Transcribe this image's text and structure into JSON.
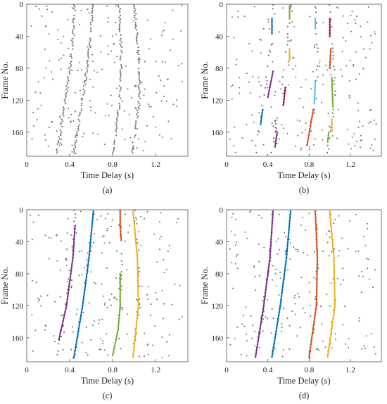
{
  "colors": {
    "noise": "#707070",
    "frame": "#555555",
    "purple": "#7E2F8E",
    "blue": "#0072BD",
    "orange": "#D95319",
    "green": "#77AC30",
    "yellow": "#EDB120",
    "cyan": "#4DBEEE",
    "darkred": "#A2142F"
  },
  "chart_data": [
    {
      "type": "scatter",
      "caption": "(a)",
      "xlabel": "Time Delay (s)",
      "ylabel": "Frame No.",
      "xlim": [
        0,
        1.5
      ],
      "ylim": [
        0,
        190
      ],
      "y_inverted": true,
      "xticks": [
        "0",
        "0.4",
        "0.8",
        "1.2"
      ],
      "yticks": [
        "0",
        "40",
        "80",
        "120",
        "160"
      ],
      "series": [],
      "tracks": []
    },
    {
      "type": "scatter",
      "caption": "(b)",
      "xlabel": "Time Delay (s)",
      "ylabel": "Frame No.",
      "xlim": [
        0,
        1.5
      ],
      "ylim": [
        0,
        190
      ],
      "y_inverted": true,
      "xticks": [
        "0",
        "0.4",
        "0.8",
        "1.2"
      ],
      "yticks": [
        "0",
        "40",
        "80",
        "120",
        "160"
      ],
      "series": [
        {
          "color": "#0072BD",
          "points": [
            [
              0.44,
              18
            ],
            [
              0.44,
              36
            ]
          ]
        },
        {
          "color": "#77AC30",
          "points": [
            [
              0.61,
              2
            ],
            [
              0.61,
              18
            ]
          ]
        },
        {
          "color": "#4DBEEE",
          "points": [
            [
              0.86,
              18
            ],
            [
              0.86,
              30
            ]
          ]
        },
        {
          "color": "#A2142F",
          "points": [
            [
              1.0,
              18
            ],
            [
              1.0,
              40
            ]
          ]
        },
        {
          "color": "#EDB120",
          "points": [
            [
              0.61,
              56
            ],
            [
              0.61,
              70
            ]
          ]
        },
        {
          "color": "#D95319",
          "points": [
            [
              1.01,
              56
            ],
            [
              1.0,
              80
            ]
          ]
        },
        {
          "color": "#7E2F8E",
          "points": [
            [
              0.45,
              84
            ],
            [
              0.4,
              116
            ]
          ]
        },
        {
          "color": "#A2142F",
          "points": [
            [
              0.57,
              104
            ],
            [
              0.55,
              126
            ]
          ]
        },
        {
          "color": "#4DBEEE",
          "points": [
            [
              0.86,
              96
            ],
            [
              0.85,
              124
            ]
          ]
        },
        {
          "color": "#77AC30",
          "points": [
            [
              1.02,
              92
            ],
            [
              1.03,
              128
            ]
          ]
        },
        {
          "color": "#0072BD",
          "points": [
            [
              0.35,
              132
            ],
            [
              0.33,
              150
            ]
          ]
        },
        {
          "color": "#D95319",
          "points": [
            [
              0.84,
              132
            ],
            [
              0.78,
              176
            ]
          ]
        },
        {
          "color": "#EDB120",
          "points": [
            [
              1.02,
              144
            ],
            [
              1.02,
              158
            ]
          ]
        },
        {
          "color": "#7E2F8E",
          "points": [
            [
              0.49,
              160
            ],
            [
              0.47,
              178
            ]
          ]
        },
        {
          "color": "#77AC30",
          "points": [
            [
              0.99,
              160
            ],
            [
              0.98,
              172
            ]
          ]
        }
      ],
      "tracks": []
    },
    {
      "type": "scatter",
      "caption": "(c)",
      "xlabel": "Time Delay (s)",
      "ylabel": "Frame No.",
      "xlim": [
        0,
        1.5
      ],
      "ylim": [
        0,
        190
      ],
      "y_inverted": true,
      "xticks": [
        "0",
        "0.4",
        "0.8",
        "1.2"
      ],
      "yticks": [
        "0",
        "40",
        "80",
        "120",
        "160"
      ],
      "series": [
        {
          "color": "#7E2F8E",
          "points": [
            [
              0.45,
              20
            ],
            [
              0.43,
              60
            ],
            [
              0.37,
              120
            ],
            [
              0.3,
              162
            ]
          ]
        },
        {
          "color": "#0072BD",
          "points": [
            [
              0.62,
              2
            ],
            [
              0.58,
              60
            ],
            [
              0.52,
              120
            ],
            [
              0.44,
              184
            ]
          ]
        },
        {
          "color": "#D95319",
          "points": [
            [
              0.87,
              2
            ],
            [
              0.87,
              20
            ],
            [
              0.88,
              38
            ]
          ]
        },
        {
          "color": "#77AC30",
          "points": [
            [
              0.87,
              80
            ],
            [
              0.87,
              120
            ],
            [
              0.85,
              150
            ],
            [
              0.8,
              182
            ]
          ]
        },
        {
          "color": "#EDB120",
          "points": [
            [
              0.99,
              2
            ],
            [
              1.03,
              60
            ],
            [
              1.04,
              120
            ],
            [
              0.99,
              184
            ]
          ]
        }
      ],
      "tracks": []
    },
    {
      "type": "scatter",
      "caption": "(d)",
      "xlabel": "Time Delay (s)",
      "ylabel": "Frame No.",
      "xlim": [
        0,
        1.5
      ],
      "ylim": [
        0,
        190
      ],
      "y_inverted": true,
      "xticks": [
        "0",
        "0.4",
        "0.8",
        "1.2"
      ],
      "yticks": [
        "0",
        "40",
        "80",
        "120",
        "160"
      ],
      "series": [
        {
          "color": "#7E2F8E",
          "points": [
            [
              0.45,
              2
            ],
            [
              0.42,
              60
            ],
            [
              0.36,
              120
            ],
            [
              0.28,
              184
            ]
          ]
        },
        {
          "color": "#0072BD",
          "points": [
            [
              0.62,
              2
            ],
            [
              0.58,
              60
            ],
            [
              0.52,
              120
            ],
            [
              0.44,
              184
            ]
          ]
        },
        {
          "color": "#D95319",
          "points": [
            [
              0.86,
              2
            ],
            [
              0.88,
              60
            ],
            [
              0.87,
              120
            ],
            [
              0.8,
              184
            ]
          ]
        },
        {
          "color": "#EDB120",
          "points": [
            [
              1.0,
              2
            ],
            [
              1.04,
              60
            ],
            [
              1.05,
              120
            ],
            [
              0.98,
              184
            ]
          ]
        }
      ],
      "tracks": []
    }
  ]
}
